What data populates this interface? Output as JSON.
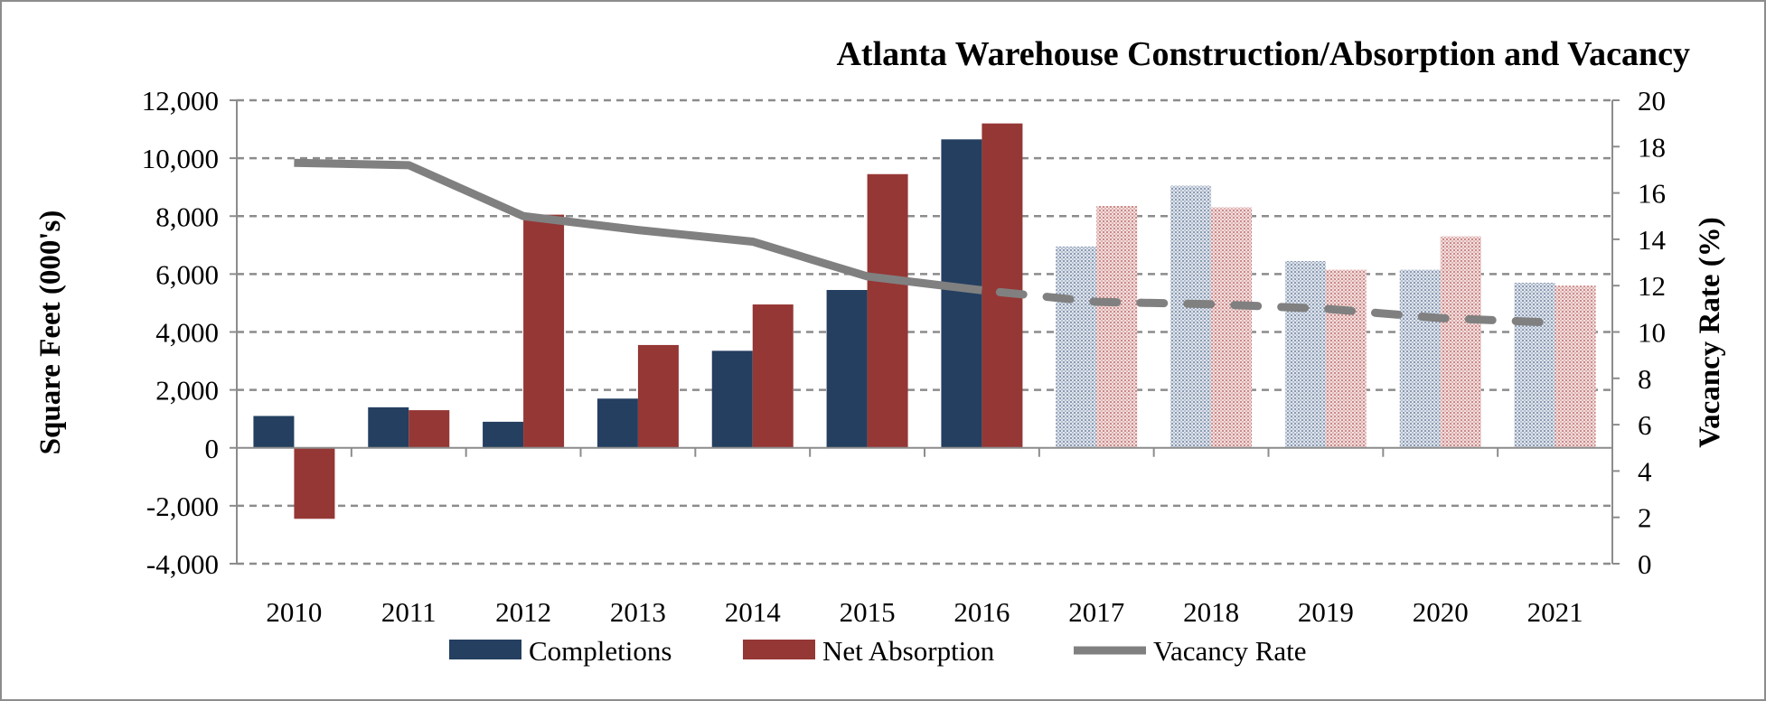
{
  "chart_data": {
    "type": "bar",
    "title": "Atlanta Warehouse Construction/Absorption and Vacancy",
    "ylabel": "Square Feet (000's)",
    "y2label": "Vacancy Rate (%)",
    "xlabel": "",
    "ylim": [
      -4000,
      12000
    ],
    "y2lim": [
      0,
      20
    ],
    "yticks": [
      -4000,
      -2000,
      0,
      2000,
      4000,
      6000,
      8000,
      10000,
      12000
    ],
    "ytick_labels": [
      "-4,000",
      "-2,000",
      "0",
      "2,000",
      "4,000",
      "6,000",
      "8,000",
      "10,000",
      "12,000"
    ],
    "y2ticks": [
      0,
      2,
      4,
      6,
      8,
      10,
      12,
      14,
      16,
      18,
      20
    ],
    "y2tick_labels": [
      "0",
      "2",
      "4",
      "6",
      "8",
      "10",
      "12",
      "14",
      "16",
      "18",
      "20"
    ],
    "categories": [
      "2010",
      "2011",
      "2012",
      "2013",
      "2014",
      "2015",
      "2016",
      "2017",
      "2018",
      "2019",
      "2020",
      "2021"
    ],
    "projected_from": "2017",
    "grid": "horizontal dashed",
    "legend_position": "bottom",
    "series": [
      {
        "name": "Completions",
        "type": "bar",
        "axis": "left",
        "color": "#243f60",
        "values": [
          1100,
          1400,
          900,
          1700,
          3350,
          5450,
          10650,
          6950,
          9050,
          6450,
          6150,
          5700
        ]
      },
      {
        "name": "Net Absorption",
        "type": "bar",
        "axis": "left",
        "color": "#953735",
        "values": [
          -2450,
          1300,
          8050,
          3550,
          4950,
          9450,
          11200,
          8350,
          8300,
          6150,
          7300,
          5600
        ]
      },
      {
        "name": "Vacancy Rate",
        "type": "line",
        "axis": "right",
        "color": "#808080",
        "values": [
          17.3,
          17.2,
          15.0,
          14.4,
          13.9,
          12.4,
          11.8,
          11.3,
          11.2,
          11.0,
          10.6,
          10.4
        ]
      }
    ]
  }
}
